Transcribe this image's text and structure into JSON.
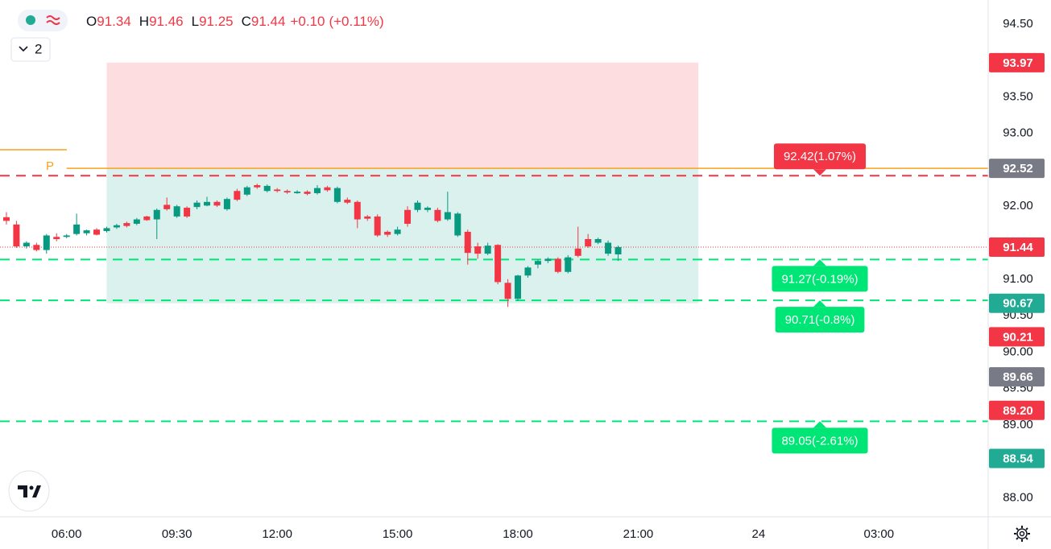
{
  "chart_data": {
    "type": "candlestick",
    "open": [
      91.85,
      91.75,
      91.45,
      91.47,
      91.4,
      91.58,
      91.58,
      91.62,
      91.63,
      91.68,
      91.66,
      91.71,
      91.77,
      91.76,
      91.86,
      91.82,
      92.02,
      91.86,
      91.98,
      91.99,
      92.01,
      92.06,
      91.96,
      92.21,
      92.16,
      92.29,
      92.21,
      92.23,
      92.21,
      92.18,
      92.2,
      92.18,
      92.26,
      92.06,
      92.09,
      92.06,
      91.86,
      91.86,
      91.65,
      91.62,
      91.95,
      91.95,
      91.95,
      91.95,
      91.82,
      91.6,
      91.65,
      91.45,
      91.35,
      91.47,
      90.95,
      90.73,
      91.05,
      91.2,
      91.25,
      91.28,
      91.1,
      91.42,
      91.55,
      91.5,
      91.35,
      91.34
    ],
    "high": [
      91.92,
      91.8,
      91.52,
      91.5,
      91.62,
      91.63,
      91.62,
      91.9,
      91.68,
      91.7,
      91.72,
      91.76,
      91.79,
      91.84,
      91.87,
      91.97,
      92.12,
      92.02,
      92.0,
      92.08,
      92.13,
      92.08,
      92.12,
      92.24,
      92.28,
      92.31,
      92.3,
      92.25,
      92.23,
      92.22,
      92.22,
      92.29,
      92.28,
      92.27,
      92.12,
      92.08,
      91.88,
      91.89,
      91.67,
      91.72,
      92.0,
      92.08,
      92.0,
      91.98,
      92.2,
      91.92,
      91.68,
      91.5,
      91.5,
      91.48,
      91.0,
      91.06,
      91.18,
      91.27,
      91.3,
      91.3,
      91.33,
      91.72,
      91.62,
      91.57,
      91.53,
      91.46
    ],
    "low": [
      91.75,
      91.43,
      91.42,
      91.38,
      91.35,
      91.52,
      91.56,
      91.6,
      91.6,
      91.6,
      91.64,
      91.69,
      91.71,
      91.74,
      91.8,
      91.55,
      91.94,
      91.84,
      91.84,
      91.96,
      92.0,
      91.99,
      91.94,
      92.07,
      92.14,
      92.24,
      92.19,
      92.19,
      92.17,
      92.17,
      92.15,
      92.16,
      92.2,
      92.04,
      92.03,
      91.7,
      91.8,
      91.58,
      91.58,
      91.6,
      91.72,
      91.92,
      91.92,
      91.78,
      91.8,
      91.58,
      91.2,
      91.28,
      91.33,
      90.93,
      90.62,
      90.7,
      91.02,
      91.15,
      91.22,
      91.08,
      91.08,
      91.3,
      91.43,
      91.48,
      91.32,
      91.25
    ],
    "close": [
      91.8,
      91.45,
      91.5,
      91.4,
      91.6,
      91.55,
      91.6,
      91.75,
      91.67,
      91.61,
      91.7,
      91.74,
      91.73,
      91.82,
      91.81,
      91.95,
      91.96,
      92.0,
      91.86,
      92.05,
      92.06,
      92.01,
      92.1,
      92.09,
      92.26,
      92.26,
      92.28,
      92.21,
      92.19,
      92.2,
      92.17,
      92.25,
      92.22,
      92.25,
      92.05,
      91.82,
      91.83,
      91.6,
      91.61,
      91.68,
      91.76,
      92.05,
      91.98,
      91.8,
      91.92,
      91.9,
      91.36,
      91.35,
      91.46,
      90.96,
      90.73,
      91.05,
      91.16,
      91.25,
      91.28,
      91.1,
      91.3,
      91.32,
      91.45,
      91.55,
      91.5,
      91.44
    ],
    "up_color": "#089981",
    "down_color": "#f23645",
    "ylim": [
      87.74,
      94.83
    ],
    "yticks": [
      {
        "value": 94.5,
        "label": "94.50"
      },
      {
        "value": 94,
        "label": "94.00"
      },
      {
        "value": 93.5,
        "label": "93.50"
      },
      {
        "value": 93,
        "label": "93.00"
      },
      {
        "value": 92.5,
        "label": "92.50"
      },
      {
        "value": 92,
        "label": "92.00"
      },
      {
        "value": 91.5,
        "label": "91.50"
      },
      {
        "value": 91,
        "label": "91.00"
      },
      {
        "value": 90.5,
        "label": "90.50"
      },
      {
        "value": 90,
        "label": "90.00"
      },
      {
        "value": 89.5,
        "label": "89.50"
      },
      {
        "value": 89,
        "label": "89.00"
      },
      {
        "value": 88.5,
        "label": "88.50"
      },
      {
        "value": 88,
        "label": "88.00"
      }
    ],
    "xlim": [
      -0.64,
      97.9
    ],
    "xticks": [
      {
        "value": 6,
        "label": "06:00"
      },
      {
        "value": 17,
        "label": "09:30"
      },
      {
        "value": 27,
        "label": "12:00"
      },
      {
        "value": 39,
        "label": "15:00"
      },
      {
        "value": 51,
        "label": "18:00"
      },
      {
        "value": 63,
        "label": "21:00"
      },
      {
        "value": 75,
        "label": "24"
      },
      {
        "value": 87,
        "label": "03:00"
      }
    ],
    "grid": true,
    "position": {
      "stop": 93.97,
      "entry": 92.52,
      "target": 90.67,
      "start": 10,
      "end": 69,
      "loss_color": "#f23645",
      "profit_color": "#22ab94"
    },
    "pivot": {
      "label": "P",
      "value": 92.52,
      "color": "#f7a21b"
    },
    "last_price": 91.44,
    "levels": [
      {
        "value": 92.42,
        "label": "92.42(1.07%)",
        "color": "#f23645"
      },
      {
        "value": 91.27,
        "label": "91.27(-0.19%)",
        "color": "#00e676"
      },
      {
        "value": 90.71,
        "label": "90.71(-0.8%)",
        "color": "#00e676"
      },
      {
        "value": 89.05,
        "label": "89.05(-2.61%)",
        "color": "#00e676"
      }
    ],
    "badges": [
      {
        "value": 93.97,
        "color": "#f23645"
      },
      {
        "value": 92.52,
        "color": "#787b86"
      },
      {
        "value": 91.44,
        "color": "#f23645"
      },
      {
        "value": 90.67,
        "color": "#22ab94"
      },
      {
        "value": 90.21,
        "color": "#f23645"
      },
      {
        "value": 89.66,
        "color": "#787b86"
      },
      {
        "value": 89.2,
        "label": "89.20",
        "color": "#f23645"
      },
      {
        "value": 88.54,
        "color": "#22ab94"
      }
    ]
  },
  "header": {
    "legend_count": "2",
    "ohlc": [
      {
        "label": "O",
        "value": 91.34
      },
      {
        "label": "H",
        "value": 91.46
      },
      {
        "label": "L",
        "value": 91.25
      },
      {
        "label": "C",
        "value": 91.44
      }
    ],
    "change": "+0.10",
    "change_pct": "(+0.11%)"
  }
}
